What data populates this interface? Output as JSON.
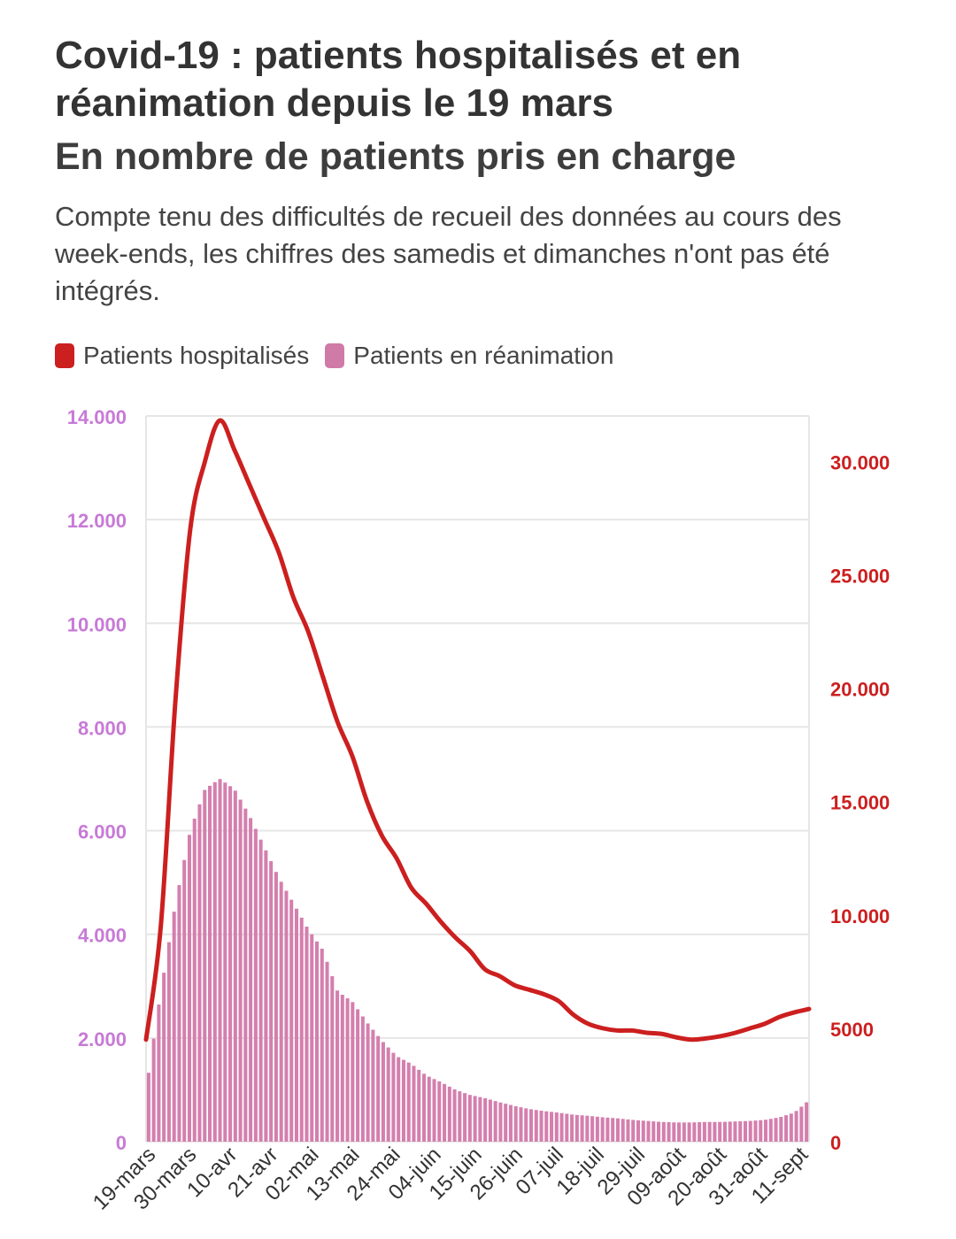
{
  "chart_data": {
    "type": "bar",
    "title": "Covid-19 : patients hospitalisés et en réanimation depuis le 19 mars",
    "subtitle": "En nombre de patients pris en charge",
    "note": "Compte tenu des difficultés de recueil des données au cours des week-ends, les chiffres des samedis et dimanches n'ont pas été intégrés.",
    "legend": [
      {
        "label": "Patients hospitalisés",
        "color": "#cc1f1f"
      },
      {
        "label": "Patients en réanimation",
        "color": "#cf7aa7"
      }
    ],
    "x_ticks": [
      "19-mars",
      "30-mars",
      "10-avr",
      "21-avr",
      "02-mai",
      "13-mai",
      "24-mai",
      "04-juin",
      "15-juin",
      "26-juin",
      "07-juil",
      "18-juil",
      "29-juil",
      "09-août",
      "20-août",
      "31-août",
      "11-sept"
    ],
    "left_axis": {
      "ylim": [
        0,
        14000
      ],
      "ticks": [
        0,
        2000,
        4000,
        6000,
        8000,
        10000,
        12000,
        14000
      ],
      "tick_labels": [
        "0",
        "2.000",
        "4.000",
        "6.000",
        "8.000",
        "10.000",
        "12.000",
        "14.000"
      ],
      "color": "#c77ad6"
    },
    "right_axis": {
      "ylim": [
        0,
        32000
      ],
      "ticks": [
        0,
        5000,
        10000,
        15000,
        20000,
        25000,
        30000
      ],
      "tick_labels": [
        "0",
        "5000",
        "10.000",
        "15.000",
        "20.000",
        "25.000",
        "30.000"
      ],
      "color": "#cc1f1f"
    },
    "series": [
      {
        "name": "Patients en réanimation",
        "type": "bar",
        "axis": "left",
        "day_offsets": [
          0,
          4,
          8,
          12,
          16,
          20,
          24,
          28,
          32,
          36,
          40,
          44,
          48,
          52,
          56,
          60,
          64,
          68,
          72,
          76,
          80,
          84,
          88,
          92,
          96,
          100,
          104,
          108,
          112,
          116,
          120,
          124,
          128,
          132,
          136,
          140,
          144,
          148,
          152,
          156,
          160,
          164,
          168,
          172,
          176,
          180
        ],
        "values": [
          1000,
          2900,
          4600,
          6000,
          6800,
          7000,
          6800,
          6300,
          5700,
          5100,
          4600,
          4100,
          3700,
          2900,
          2700,
          2300,
          1950,
          1650,
          1500,
          1280,
          1150,
          1000,
          900,
          840,
          760,
          690,
          630,
          590,
          560,
          520,
          500,
          470,
          450,
          420,
          400,
          380,
          370,
          370,
          380,
          380,
          390,
          400,
          420,
          470,
          560,
          800
        ]
      },
      {
        "name": "Patients hospitalisés",
        "type": "line",
        "axis": "right",
        "day_offsets": [
          0,
          4,
          8,
          12,
          16,
          20,
          24,
          28,
          32,
          36,
          40,
          44,
          48,
          52,
          56,
          60,
          64,
          68,
          72,
          76,
          80,
          84,
          88,
          92,
          96,
          100,
          104,
          108,
          112,
          116,
          120,
          124,
          128,
          132,
          136,
          140,
          144,
          148,
          152,
          156,
          160,
          164,
          168,
          172,
          176,
          180
        ],
        "values": [
          4500,
          9500,
          19500,
          27000,
          30000,
          31800,
          30500,
          29000,
          27500,
          26000,
          24000,
          22500,
          20500,
          18500,
          17000,
          15000,
          13500,
          12500,
          11200,
          10500,
          9700,
          9000,
          8400,
          7600,
          7300,
          6900,
          6700,
          6500,
          6200,
          5600,
          5200,
          5000,
          4900,
          4900,
          4800,
          4750,
          4600,
          4500,
          4550,
          4650,
          4800,
          5000,
          5200,
          5500,
          5700,
          5850
        ]
      }
    ]
  }
}
